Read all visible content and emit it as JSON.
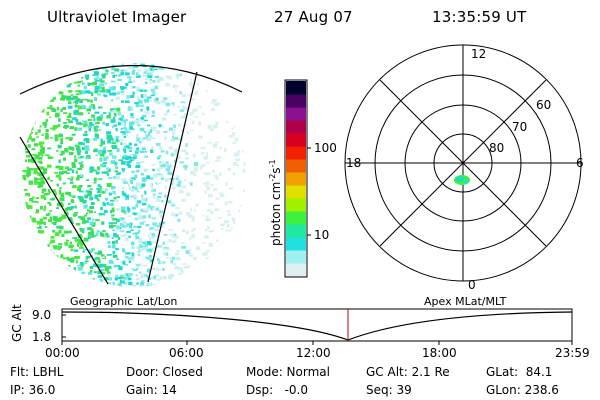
{
  "header": {
    "instrument": "Ultraviolet Imager",
    "date": "27 Aug 07",
    "time": "13:35:59 UT"
  },
  "colorbar": {
    "unit_prefix": "photon cm",
    "unit_exp1": "-2",
    "unit_mid": "s",
    "unit_exp2": "-1",
    "ticks": [
      "100",
      "10"
    ],
    "colors": [
      "#000030",
      "#4a0060",
      "#8a1090",
      "#b0004a",
      "#d80020",
      "#f02000",
      "#f06000",
      "#f0a000",
      "#e0e000",
      "#a0f000",
      "#40f040",
      "#20e8a0",
      "#20e0e0",
      "#a0f0f0",
      "#e0f0f0"
    ]
  },
  "polar_plot": {
    "mlt_labels": {
      "top": "12",
      "bottom": "0",
      "left": "18",
      "right": "6"
    },
    "lat_labels": [
      "60",
      "70",
      "80"
    ]
  },
  "timeline": {
    "left_label": "Geographic Lat/Lon",
    "right_label": "Apex MLat/MLT",
    "axis_label": "GC Alt",
    "y_ticks": [
      "9.0",
      "1.8"
    ],
    "x_ticks": [
      "00:00",
      "06:00",
      "12:00",
      "18:00",
      "23:59"
    ],
    "marker_color": "#c00000"
  },
  "info": {
    "row1": {
      "flt": "Flt: LBHL",
      "door": "Door: Closed",
      "mode": "Mode: Normal",
      "gcalt": "GC Alt: 2.1 Re",
      "glat": "GLat:  84.1"
    },
    "row2": {
      "ip": "IP: 36.0",
      "gain": "Gain: 14",
      "dsp": "Dsp:   -0.0",
      "seq": "Seq: 39",
      "glon": "GLon: 238.6"
    }
  }
}
